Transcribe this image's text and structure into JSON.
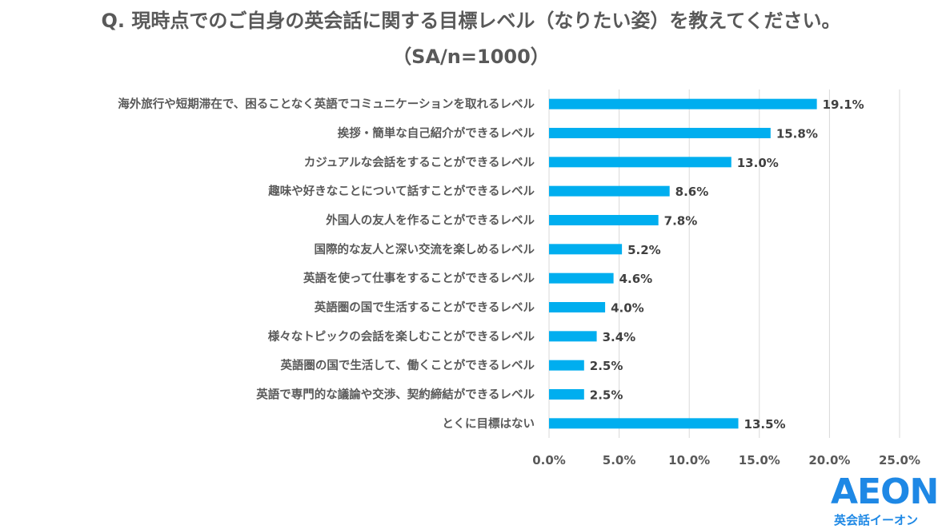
{
  "title": {
    "line1": "Q. 現時点でのご自身の英会話に関する目標レベル（なりたい姿）を教えてください。",
    "line2": "（SA/n=1000）"
  },
  "chart_data": {
    "type": "bar",
    "orientation": "horizontal",
    "categories": [
      "海外旅行や短期滞在で、困ることなく英語でコミュニケーションを取れるレベル",
      "挨拶・簡単な自己紹介ができるレベル",
      "カジュアルな会話をすることができるレベル",
      "趣味や好きなことについて話すことができるレベル",
      "外国人の友人を作ることができるレベル",
      "国際的な友人と深い交流を楽しめるレベル",
      "英語を使って仕事をすることができるレベル",
      "英語圏の国で生活することができるレベル",
      "様々なトピックの会話を楽しむことができるレベル",
      "英語圏の国で生活して、働くことができるレベル",
      "英語で専門的な議論や交渉、契約締結ができるレベル",
      "とくに目標はない"
    ],
    "values": [
      19.1,
      15.8,
      13.0,
      8.6,
      7.8,
      5.2,
      4.6,
      4.0,
      3.4,
      2.5,
      2.5,
      13.5
    ],
    "value_labels": [
      "19.1%",
      "15.8%",
      "13.0%",
      "8.6%",
      "7.8%",
      "5.2%",
      "4.6%",
      "4.0%",
      "3.4%",
      "2.5%",
      "2.5%",
      "13.5%"
    ],
    "x_ticks": [
      0,
      5,
      10,
      15,
      20,
      25
    ],
    "x_tick_labels": [
      "0.0%",
      "5.0%",
      "10.0%",
      "15.0%",
      "20.0%",
      "25.0%"
    ],
    "xlim": [
      0,
      25
    ],
    "grid": true,
    "bar_color": "#00aeef",
    "grid_color": "#d9d9d9"
  },
  "logo": {
    "word": "AEON",
    "subtitle": "英会話イーオン",
    "color": "#1e88e5"
  }
}
